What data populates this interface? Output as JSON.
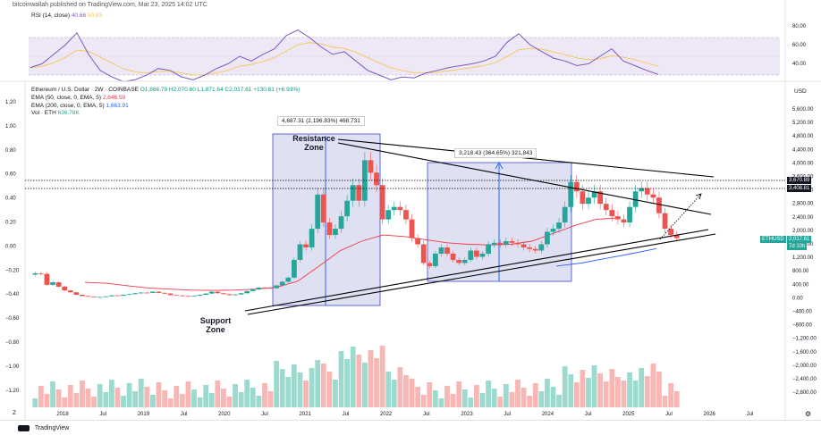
{
  "header": {
    "publish_line": "bitcoinwallah published on TradingView.com, Mar 23, 2025 14:02 UTC"
  },
  "rsi": {
    "legend_name": "RSI (14, close)",
    "legend_value": "40.66",
    "legend_ma": "50.83",
    "ticks": [
      "80.00",
      "60.00",
      "40.00"
    ],
    "colors": {
      "line": "#7e57c2",
      "ma": "#f5c542",
      "band": "#ede7f6"
    }
  },
  "legend": {
    "title": "Ethereum / U.S. Dollar · 2W · COINBASE",
    "ohlc": "O1,886.79  H2,070.60  L1,871.64  C2,017.61  +130.81 (+6.93%)",
    "ema50_label": "EMA (50, close, 0, EMA, 5)",
    "ema50_value": "2,646.59",
    "ema200_label": "EMA (200, close, 0, EMA, 5)",
    "ema200_value": "1,663.91",
    "vol_label": "Vol · ETH",
    "vol_value": "636.78K"
  },
  "currency": "USD",
  "right_axis": [
    "5,600.00",
    "5,200.00",
    "4,800.00",
    "4,400.00",
    "4,000.00",
    "3,600.00",
    "3,200.00",
    "2,800.00",
    "2,400.00",
    "2,000.00",
    "1,600.00",
    "1,200.00",
    "800.00",
    "400.00",
    "0.00",
    "−400.00",
    "−800.00",
    "−1,200.00",
    "−1,600.00",
    "−2,000.00",
    "−2,400.00",
    "−2,800.00"
  ],
  "left_axis": [
    "1.20",
    "1.00",
    "0.80",
    "0.60",
    "0.40",
    "0.20",
    "0.00",
    "−0.20",
    "−0.40",
    "−0.60",
    "−0.80",
    "−1.00",
    "−1.20"
  ],
  "x_axis": [
    "2018",
    "Jul",
    "2019",
    "Jul",
    "2020",
    "Jul",
    "2021",
    "Jul",
    "2022",
    "Jul",
    "2023",
    "Jul",
    "2024",
    "Jul",
    "2025",
    "Jul",
    "2026",
    "Jul"
  ],
  "price_tags": [
    {
      "text": "3,670.89",
      "color": "#131722"
    },
    {
      "text": "3,408.81",
      "color": "#131722"
    },
    {
      "text": "ETHUSD",
      "color": "#26a69a"
    },
    {
      "text": "2,017.61",
      "color": "#26a69a"
    },
    {
      "text": "7d 10h",
      "color": "#26a69a"
    }
  ],
  "annotations": {
    "callout_1": "4,687.31 (2,196.83%) 468,731",
    "callout_2": "3,218.43 (364.65%) 321,843",
    "resistance_zone": "Resistance Zone",
    "support_zone": "Support Zone"
  },
  "footer": {
    "brand": "TradingView",
    "scale_mark": "Z"
  },
  "chart_data": {
    "type": "candlestick",
    "symbol": "ETHUSD",
    "timeframe": "2W",
    "exchange": "COINBASE",
    "price_range": [
      -2800,
      5800
    ],
    "last": {
      "open": 1886.79,
      "high": 2070.6,
      "low": 1871.64,
      "close": 2017.61,
      "change": 130.81,
      "change_pct": 6.93
    },
    "closes_approx": [
      870,
      850,
      500,
      580,
      440,
      320,
      260,
      180,
      140,
      120,
      110,
      110,
      130,
      160,
      150,
      180,
      200,
      230,
      250,
      240,
      280,
      240,
      220,
      170,
      160,
      140,
      130,
      150,
      180,
      220,
      280,
      230,
      200,
      170,
      190,
      230,
      300,
      350,
      410,
      400,
      390,
      480,
      600,
      730,
      1300,
      1800,
      1700,
      2300,
      3400,
      2500,
      2100,
      2300,
      2700,
      3200,
      3700,
      3200,
      4500,
      4100,
      3700,
      2600,
      2900,
      3000,
      2900,
      2600,
      2000,
      1800,
      1200,
      1100,
      1500,
      1700,
      1500,
      1300,
      1200,
      1300,
      1600,
      1400,
      1500,
      1800,
      1850,
      1800,
      1900,
      1850,
      1800,
      1700,
      1650,
      1600,
      1800,
      2200,
      2300,
      2500,
      3000,
      3800,
      3500,
      3100,
      3300,
      3500,
      3100,
      2900,
      2700,
      2600,
      2500,
      3000,
      3500,
      3600,
      3400,
      3300,
      2800,
      2300,
      2100,
      2000
    ],
    "ema50_approx": [
      580,
      550,
      470,
      400,
      360,
      330,
      320,
      330,
      360,
      420,
      620,
      1100,
      1600,
      1900,
      2100,
      2050,
      1950,
      1850,
      1800,
      1780,
      1800,
      1900,
      2150,
      2400,
      2600,
      2646.59
    ],
    "ema200_approx": [
      1100,
      1200,
      1350,
      1500,
      1663.91
    ],
    "rsi_approx": [
      48,
      52,
      62,
      72,
      85,
      62,
      45,
      38,
      33,
      35,
      40,
      47,
      45,
      38,
      35,
      40,
      47,
      52,
      60,
      55,
      62,
      68,
      82,
      88,
      80,
      70,
      62,
      65,
      55,
      45,
      40,
      35,
      38,
      37,
      42,
      45,
      48,
      50,
      52,
      55,
      60,
      75,
      84,
      72,
      65,
      58,
      55,
      50,
      52,
      60,
      68,
      55,
      50,
      45,
      40.66
    ],
    "rsi_ma_approx": 50.83,
    "volume": "Vol · ETH 636.78K (last)",
    "horizontal_lines": [
      3670.89,
      3408.81
    ]
  }
}
